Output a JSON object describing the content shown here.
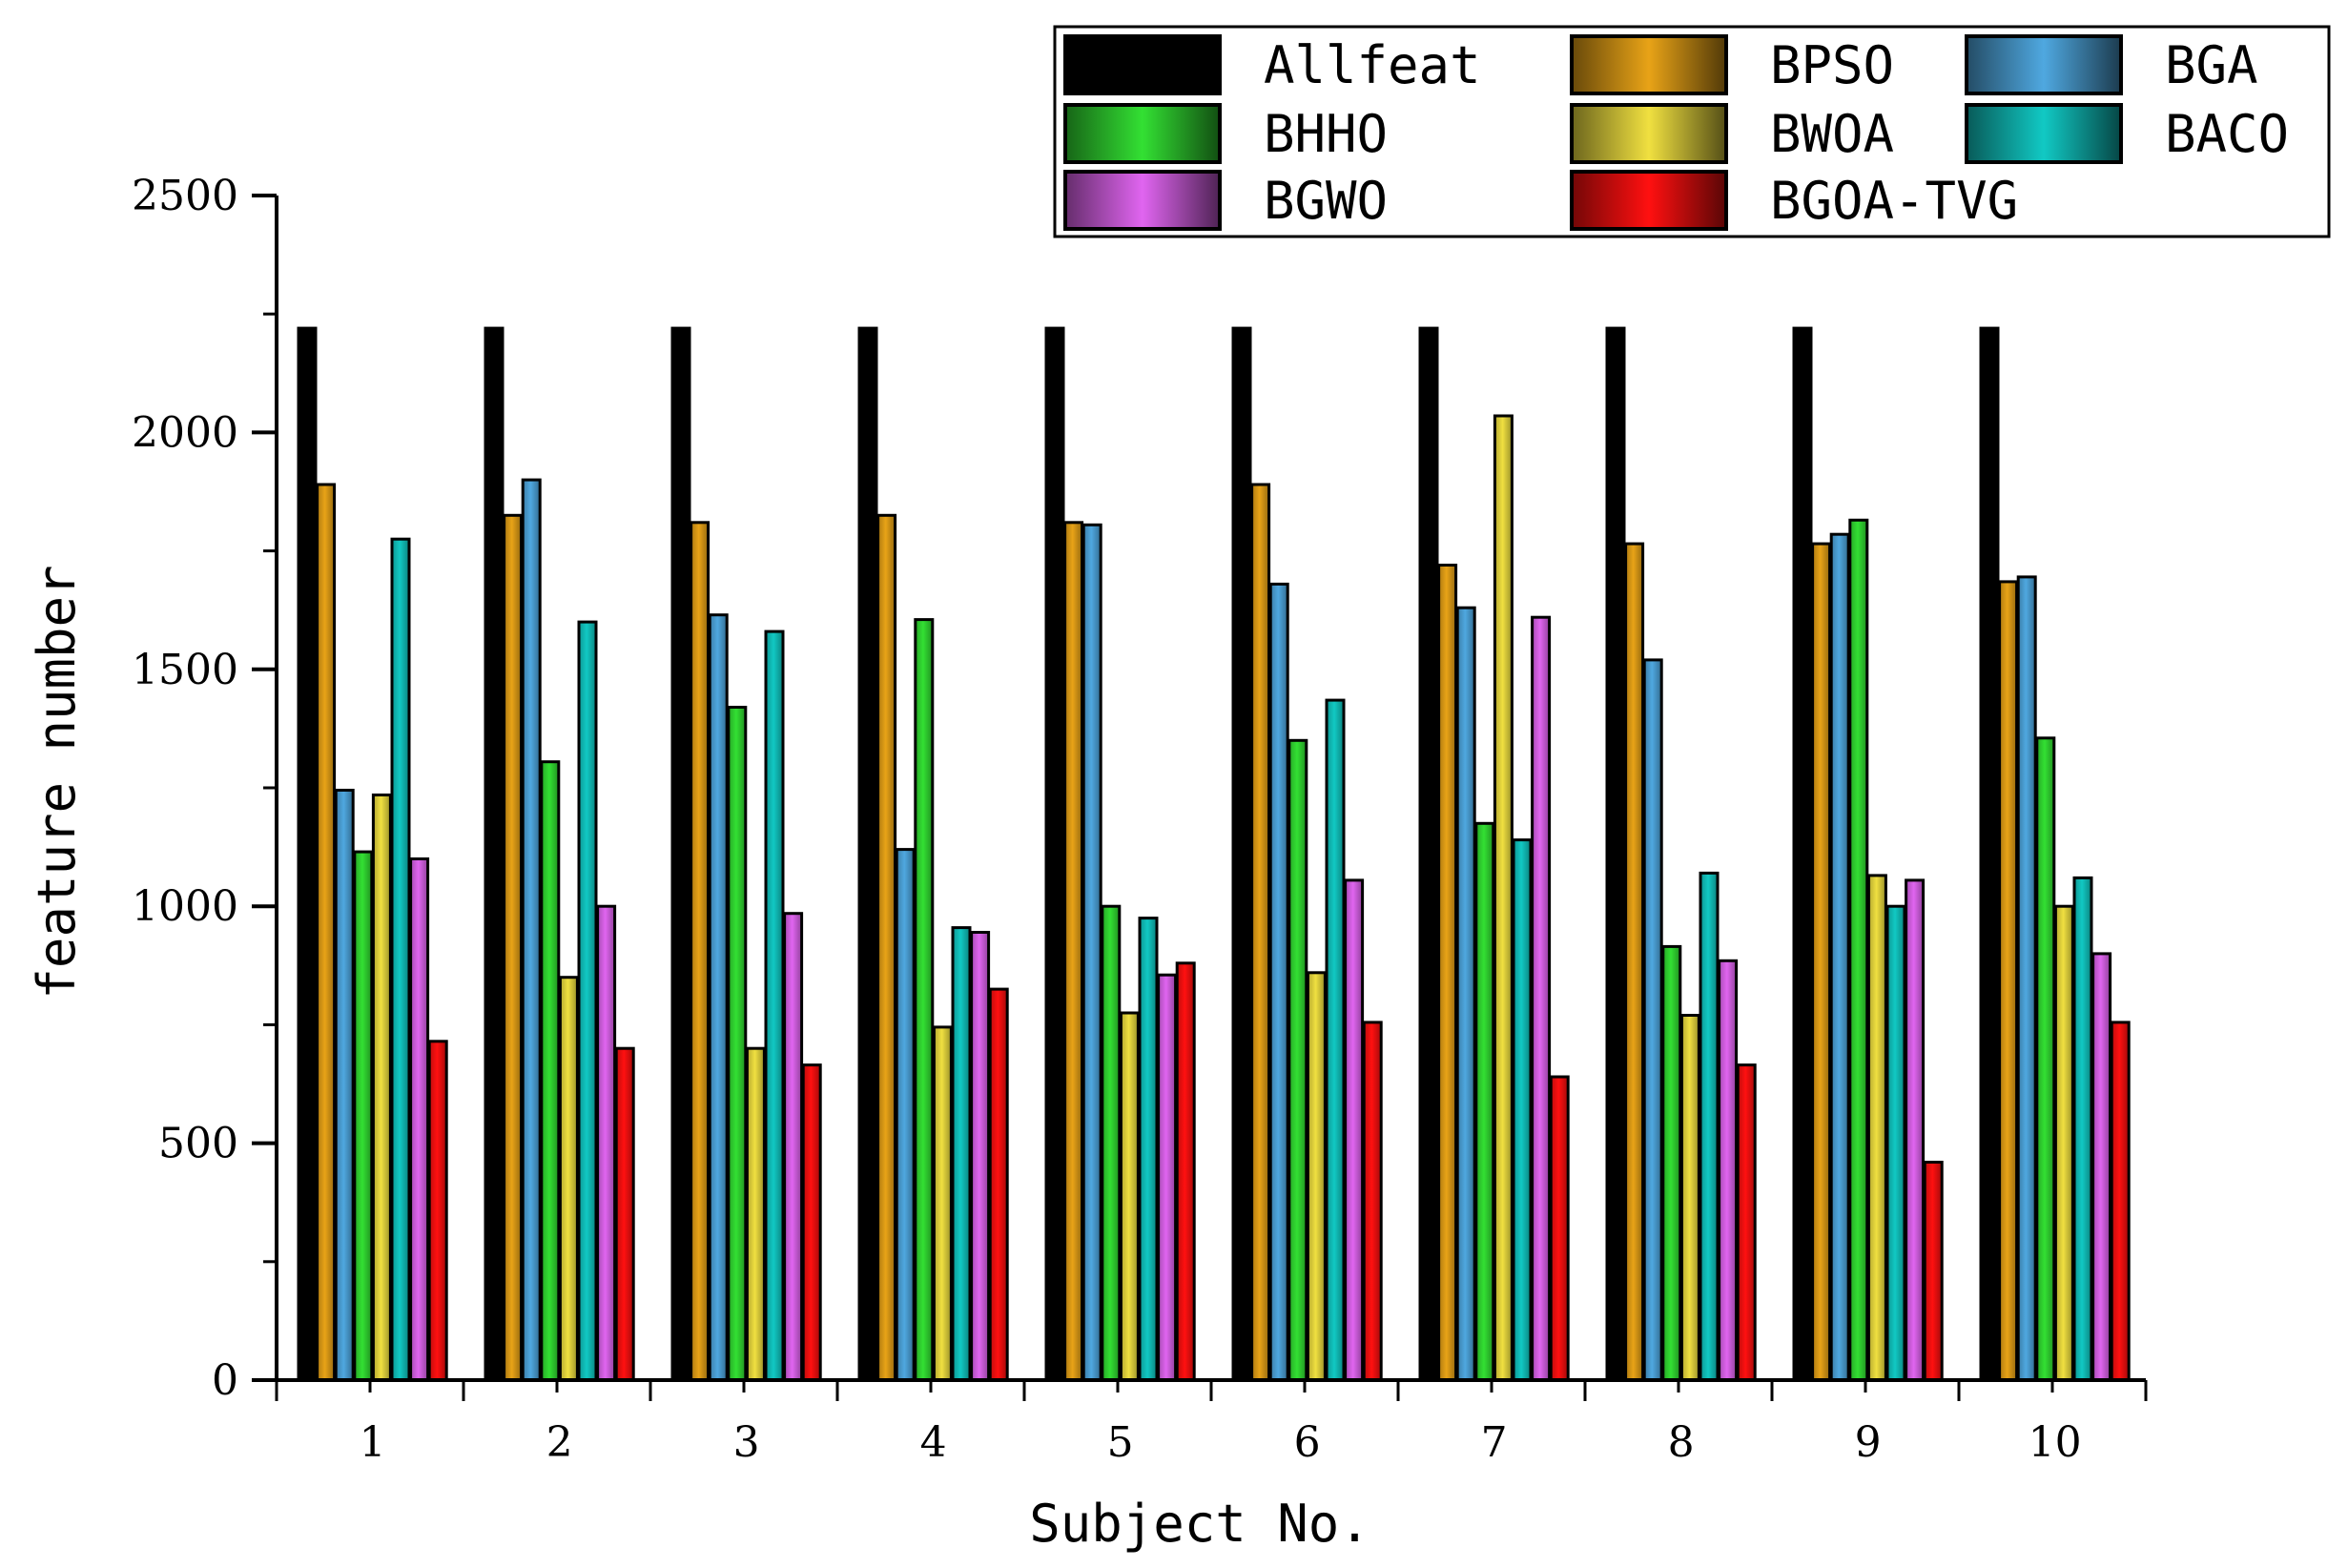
{
  "chart_data": {
    "type": "bar",
    "title": "",
    "xlabel": "Subject No.",
    "ylabel": "feature number",
    "ylim": [
      0,
      2500
    ],
    "yticks": [
      0,
      500,
      1000,
      1500,
      2000,
      2500
    ],
    "categories": [
      "1",
      "2",
      "3",
      "4",
      "5",
      "6",
      "7",
      "8",
      "9",
      "10"
    ],
    "legend_position": "top-right",
    "series": [
      {
        "name": "Allfeat",
        "color": "#000000",
        "values": [
          2220,
          2220,
          2220,
          2220,
          2220,
          2220,
          2220,
          2220,
          2220,
          2220
        ]
      },
      {
        "name": "BPSO",
        "color": "#E8A317",
        "values": [
          1890,
          1825,
          1810,
          1825,
          1810,
          1890,
          1720,
          1765,
          1765,
          1685
        ]
      },
      {
        "name": "BGA",
        "color": "#4FA8E0",
        "values": [
          1245,
          1900,
          1615,
          1120,
          1805,
          1680,
          1630,
          1520,
          1785,
          1695
        ]
      },
      {
        "name": "BHHO",
        "color": "#33E033",
        "values": [
          1115,
          1305,
          1420,
          1605,
          1000,
          1350,
          1175,
          915,
          1815,
          1355
        ]
      },
      {
        "name": "BWOA",
        "color": "#F0E040",
        "values": [
          1235,
          850,
          700,
          745,
          775,
          860,
          2035,
          770,
          1065,
          1000
        ]
      },
      {
        "name": "BACO",
        "color": "#11C9C4",
        "values": [
          1775,
          1600,
          1580,
          955,
          975,
          1435,
          1140,
          1070,
          1000,
          1060
        ]
      },
      {
        "name": "BGWO",
        "color": "#E065F0",
        "values": [
          1100,
          1000,
          985,
          945,
          855,
          1055,
          1610,
          885,
          1055,
          900
        ]
      },
      {
        "name": "BGOA-TVG",
        "color": "#FF1010",
        "values": [
          715,
          700,
          665,
          825,
          880,
          755,
          640,
          665,
          460,
          755
        ]
      }
    ]
  },
  "legend": {
    "items": [
      {
        "label": "Allfeat",
        "color": "#000000"
      },
      {
        "label": "BPSO",
        "color": "#E8A317"
      },
      {
        "label": "BGA",
        "color": "#4FA8E0"
      },
      {
        "label": "BHHO",
        "color": "#33E033"
      },
      {
        "label": "BWOA",
        "color": "#F0E040"
      },
      {
        "label": "BACO",
        "color": "#11C9C4"
      },
      {
        "label": "BGWO",
        "color": "#E065F0"
      },
      {
        "label": "BGOA-TVG",
        "color": "#FF1010"
      }
    ]
  }
}
